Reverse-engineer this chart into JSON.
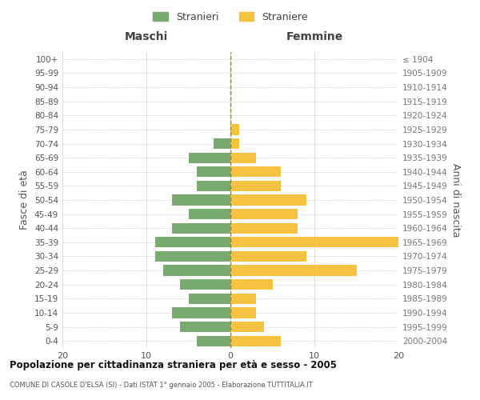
{
  "age_groups": [
    "0-4",
    "5-9",
    "10-14",
    "15-19",
    "20-24",
    "25-29",
    "30-34",
    "35-39",
    "40-44",
    "45-49",
    "50-54",
    "55-59",
    "60-64",
    "65-69",
    "70-74",
    "75-79",
    "80-84",
    "85-89",
    "90-94",
    "95-99",
    "100+"
  ],
  "birth_years": [
    "2000-2004",
    "1995-1999",
    "1990-1994",
    "1985-1989",
    "1980-1984",
    "1975-1979",
    "1970-1974",
    "1965-1969",
    "1960-1964",
    "1955-1959",
    "1950-1954",
    "1945-1949",
    "1940-1944",
    "1935-1939",
    "1930-1934",
    "1925-1929",
    "1920-1924",
    "1915-1919",
    "1910-1914",
    "1905-1909",
    "≤ 1904"
  ],
  "maschi": [
    4,
    6,
    7,
    5,
    6,
    8,
    9,
    9,
    7,
    5,
    7,
    4,
    4,
    5,
    2,
    0,
    0,
    0,
    0,
    0,
    0
  ],
  "femmine": [
    6,
    4,
    3,
    3,
    5,
    15,
    9,
    20,
    8,
    8,
    9,
    6,
    6,
    3,
    1,
    1,
    0,
    0,
    0,
    0,
    0
  ],
  "title": "Popolazione per cittadinanza straniera per età e sesso - 2005",
  "subtitle": "COMUNE DI CASOLE D'ELSA (SI) - Dati ISTAT 1° gennaio 2005 - Elaborazione TUTTITALIA.IT",
  "xlabel_left": "Maschi",
  "xlabel_right": "Femmine",
  "ylabel_left": "Fasce di età",
  "ylabel_right": "Anni di nascita",
  "legend_maschi": "Stranieri",
  "legend_femmine": "Straniere",
  "xlim": 20,
  "background_color": "#ffffff",
  "grid_color": "#d0d0d0",
  "bar_color_maschi": "#7aab6e",
  "bar_color_femmine": "#f5c242",
  "dashed_line_color": "#888840"
}
